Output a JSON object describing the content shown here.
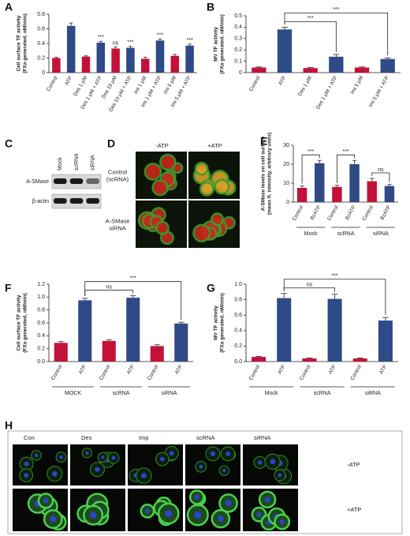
{
  "chart_data": [
    {
      "type": "bar",
      "panel": "A",
      "ylabel": [
        "Cell surface TF activity",
        "(FXa generated, nM/min)"
      ],
      "categories": [
        "Control",
        "ATP",
        "Des 1 μM",
        "Des 1 μM + ATP",
        "Des 10 μM",
        "Des 10 μM + ATP",
        "Imi 1 μM",
        "Imi 1 μM + ATP",
        "Imi 5 μM",
        "Imi 5 μM + ATP"
      ],
      "values": [
        0.2,
        0.64,
        0.22,
        0.41,
        0.33,
        0.34,
        0.19,
        0.44,
        0.23,
        0.37
      ],
      "errors": [
        0.01,
        0.04,
        0.01,
        0.02,
        0.02,
        0.02,
        0.02,
        0.02,
        0.02,
        0.02
      ],
      "colors": [
        "#c3123a",
        "#2e4a87",
        "#c3123a",
        "#2e4a87",
        "#c3123a",
        "#2e4a87",
        "#c3123a",
        "#2e4a87",
        "#c3123a",
        "#2e4a87"
      ],
      "ylim": [
        0,
        0.8
      ],
      "yticks": [
        0,
        0.2,
        0.4,
        0.6,
        0.8
      ],
      "annotations": [
        {
          "text": "***",
          "bar": 3
        },
        {
          "text": "ns",
          "bar": 4
        },
        {
          "text": "***",
          "bar": 5
        },
        {
          "text": "***",
          "bar": 7
        },
        {
          "text": "***",
          "bar": 9
        }
      ]
    },
    {
      "type": "bar",
      "panel": "B",
      "ylabel": [
        "MV TF activity",
        "(FXa generated, nM/min)"
      ],
      "categories": [
        "Control",
        "ATP",
        "Des 1 μM",
        "Des 1 μM + ATP",
        "Imi 5 μM",
        "Imi 5 μM + ATP"
      ],
      "values": [
        0.045,
        0.38,
        0.04,
        0.14,
        0.045,
        0.12
      ],
      "errors": [
        0.005,
        0.02,
        0.005,
        0.02,
        0.005,
        0.01
      ],
      "colors": [
        "#c3123a",
        "#2e4a87",
        "#c3123a",
        "#2e4a87",
        "#c3123a",
        "#2e4a87"
      ],
      "ylim": [
        0,
        0.5
      ],
      "yticks": [
        0,
        0.1,
        0.2,
        0.3,
        0.4,
        0.5
      ],
      "brackets": [
        {
          "from": 1,
          "to": 3,
          "text": "***"
        },
        {
          "from": 1,
          "to": 5,
          "text": "***"
        }
      ]
    },
    {
      "type": "bar",
      "panel": "E",
      "ylabel": [
        "A-SMase levels on cell surface",
        "(mean fl. intensity, arbitrary units)"
      ],
      "categories": [
        "Control",
        "BzATP",
        "Control",
        "BzATP",
        "Control",
        "BzATP"
      ],
      "groups": [
        "Mock",
        "scRNA",
        "siRNA"
      ],
      "values": [
        7.5,
        20.5,
        8,
        20,
        11,
        8.5
      ],
      "errors": [
        1,
        1.5,
        0.8,
        2,
        1.5,
        0.8
      ],
      "colors": [
        "#c3123a",
        "#2e4a87",
        "#c3123a",
        "#2e4a87",
        "#c3123a",
        "#2e4a87"
      ],
      "ylim": [
        0,
        30
      ],
      "yticks": [
        0,
        10,
        20,
        30
      ],
      "brackets": [
        {
          "from": 0,
          "to": 1,
          "text": "***"
        },
        {
          "from": 2,
          "to": 3,
          "text": "***"
        },
        {
          "from": 4,
          "to": 5,
          "text": "ns"
        }
      ]
    },
    {
      "type": "bar",
      "panel": "F",
      "ylabel": [
        "Cell surface TF activity",
        "(FXa generated, nM/min)"
      ],
      "categories": [
        "Control",
        "ATP",
        "Control",
        "ATP",
        "Control",
        "ATP"
      ],
      "groups": [
        "MOCK",
        "scRNA",
        "siRNA"
      ],
      "values": [
        0.29,
        0.95,
        0.32,
        0.99,
        0.24,
        0.59
      ],
      "errors": [
        0.02,
        0.03,
        0.02,
        0.03,
        0.02,
        0.02
      ],
      "colors": [
        "#c3123a",
        "#2e4a87",
        "#c3123a",
        "#2e4a87",
        "#c3123a",
        "#2e4a87"
      ],
      "ylim": [
        0,
        1.2
      ],
      "yticks": [
        {
          "value": 0,
          "label": "0.0"
        },
        0.2,
        0.4,
        0.6,
        0.8,
        {
          "value": 1,
          "label": "1.0"
        },
        1.2
      ],
      "brackets": [
        {
          "from": 1,
          "to": 3,
          "text": "ns"
        },
        {
          "from": 1,
          "to": 5,
          "text": "***"
        }
      ]
    },
    {
      "type": "bar",
      "panel": "G",
      "ylabel": [
        "MV TF activity",
        "(FXa generated, nM/min)"
      ],
      "categories": [
        "Control",
        "ATP",
        "Control",
        "ATP",
        "Control",
        "ATP"
      ],
      "groups": [
        "Mock",
        "scRNA",
        "siRNA"
      ],
      "values": [
        0.06,
        0.82,
        0.04,
        0.81,
        0.04,
        0.53
      ],
      "errors": [
        0.005,
        0.06,
        0.005,
        0.06,
        0.005,
        0.04
      ],
      "colors": [
        "#c3123a",
        "#2e4a87",
        "#c3123a",
        "#2e4a87",
        "#c3123a",
        "#2e4a87"
      ],
      "ylim": [
        0,
        1
      ],
      "yticks": [
        {
          "value": 0,
          "label": "0.0"
        },
        0.2,
        0.4,
        0.6,
        0.8,
        {
          "value": 1,
          "label": "1.0"
        }
      ],
      "brackets": [
        {
          "from": 1,
          "to": 3,
          "text": "ns"
        },
        {
          "from": 1,
          "to": 5,
          "text": "***"
        }
      ]
    }
  ],
  "blot": {
    "panel": "C",
    "lanes": [
      "Mock",
      "scRNA",
      "siRNA"
    ],
    "bands": [
      "A-SMase",
      "β-actin"
    ]
  },
  "micrographs_d": {
    "panel": "D",
    "columns": [
      "-ATP",
      "+ATP"
    ],
    "rows": [
      [
        "Control",
        "(scRNA)"
      ],
      [
        "A-SMase",
        "siRNA"
      ]
    ]
  },
  "micrographs_h": {
    "panel": "H",
    "columns": [
      "Con",
      "Des",
      "Imp",
      "scRNA",
      "siRNA"
    ],
    "rows": [
      "-ATP",
      "+ATP"
    ]
  }
}
